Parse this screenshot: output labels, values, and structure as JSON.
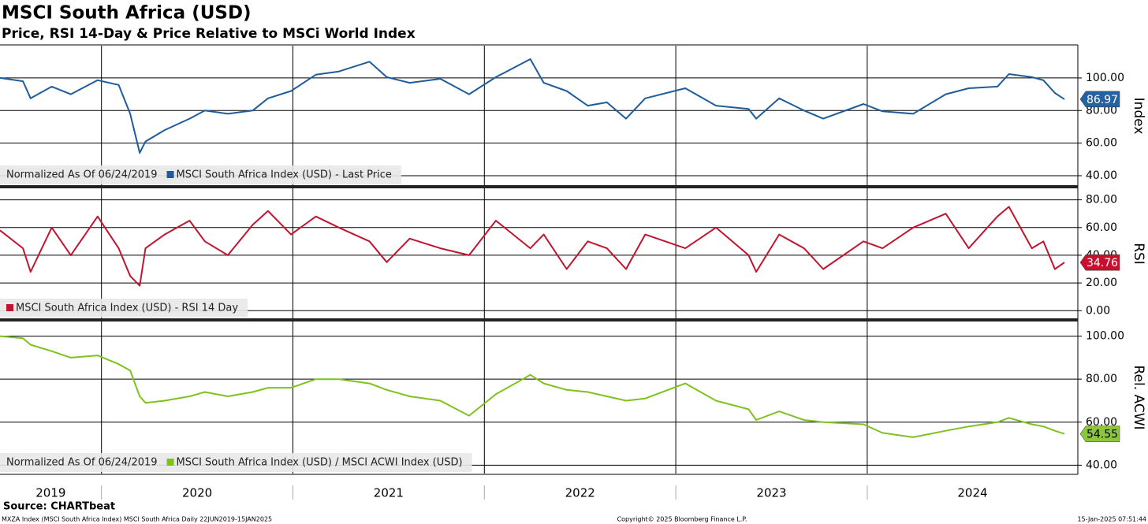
{
  "title": "MSCI South Africa (USD)",
  "subtitle": "Price, RSI 14-Day & Price Relative to MSCi World Index",
  "source": "Source: CHARTbeat",
  "footer_left": "MXZA Index (MSCI South Africa Index) MSCI South Africa  Daily 22JUN2019-15JAN2025",
  "footer_center": "Copyright© 2025 Bloomberg Finance L.P.",
  "footer_right": "15-Jan-2025 07:51:44",
  "chart_data": [
    {
      "type": "line",
      "axis_label": "Index",
      "legend_note": "Normalized As Of 06/24/2019",
      "last_value_label": true,
      "grid": true,
      "x": [
        2019.47,
        2019.59,
        2019.63,
        2019.74,
        2019.84,
        2019.98,
        2020.09,
        2020.15,
        2020.2,
        2020.23,
        2020.33,
        2020.46,
        2020.54,
        2020.66,
        2020.79,
        2020.87,
        2020.99,
        2021.12,
        2021.24,
        2021.4,
        2021.49,
        2021.61,
        2021.77,
        2021.92,
        2022.06,
        2022.24,
        2022.31,
        2022.43,
        2022.54,
        2022.64,
        2022.74,
        2022.84,
        2023.05,
        2023.21,
        2023.38,
        2023.42,
        2023.54,
        2023.67,
        2023.77,
        2023.98,
        2024.08,
        2024.24,
        2024.41,
        2024.53,
        2024.68,
        2024.74,
        2024.86,
        2024.92,
        2024.98,
        2025.03
      ],
      "xlim": [
        2019.47,
        2025.1
      ],
      "ylim": [
        33.7,
        119.8
      ],
      "yticks": [
        {
          "value": 40,
          "label": "40.00"
        },
        {
          "value": 60,
          "label": "60.00"
        },
        {
          "value": 80,
          "label": "80.00"
        },
        {
          "value": 100,
          "label": "100.00"
        }
      ],
      "series": [
        {
          "name": "MSCI South Africa Index (USD) - Last Price",
          "color": "#1f5c99",
          "badge_color": "#2462a3",
          "values": [
            100,
            98,
            87.5,
            94.7,
            90,
            98.6,
            95.7,
            78,
            54,
            61,
            68,
            75,
            80,
            78,
            80,
            87.5,
            92,
            102,
            104,
            110,
            100.5,
            97,
            99.5,
            90,
            100.5,
            111.6,
            97,
            92,
            83,
            85,
            75,
            87.5,
            93.7,
            83,
            81,
            75,
            87.5,
            80,
            75,
            84,
            79.5,
            78,
            90,
            93.7,
            94.7,
            102.4,
            100.5,
            98.6,
            90.8,
            86.97
          ]
        }
      ]
    },
    {
      "type": "line",
      "axis_label": "RSI",
      "last_value_label": true,
      "grid": true,
      "x": [
        2019.47,
        2019.59,
        2019.63,
        2019.74,
        2019.84,
        2019.98,
        2020.09,
        2020.15,
        2020.2,
        2020.23,
        2020.33,
        2020.46,
        2020.54,
        2020.66,
        2020.79,
        2020.87,
        2020.99,
        2021.12,
        2021.24,
        2021.4,
        2021.49,
        2021.61,
        2021.77,
        2021.92,
        2022.06,
        2022.24,
        2022.31,
        2022.43,
        2022.54,
        2022.64,
        2022.74,
        2022.84,
        2023.05,
        2023.21,
        2023.38,
        2023.42,
        2023.54,
        2023.67,
        2023.77,
        2023.98,
        2024.08,
        2024.24,
        2024.41,
        2024.53,
        2024.68,
        2024.74,
        2024.86,
        2024.92,
        2024.98,
        2025.03
      ],
      "xlim": [
        2019.47,
        2025.1
      ],
      "ylim": [
        -6.1,
        88.3
      ],
      "yticks": [
        {
          "value": 0,
          "label": "0.00"
        },
        {
          "value": 20,
          "label": "20.00"
        },
        {
          "value": 40,
          "label": "40.00"
        },
        {
          "value": 60,
          "label": "60.00"
        },
        {
          "value": 80,
          "label": "80.00"
        }
      ],
      "series": [
        {
          "name": "MSCI South Africa Index (USD) - RSI 14 Day",
          "color": "#c0142f",
          "badge_color": "#c8102e",
          "values": [
            58,
            45,
            28,
            60,
            40,
            68,
            45,
            25,
            18,
            45,
            55,
            65,
            50,
            40,
            62,
            72,
            55,
            68,
            60,
            50,
            35,
            52,
            45,
            40,
            65,
            45,
            55,
            30,
            50,
            45,
            30,
            55,
            45,
            60,
            40,
            28,
            55,
            45,
            30,
            50,
            45,
            60,
            70,
            45,
            68,
            75,
            45,
            50,
            30,
            34.76
          ]
        }
      ]
    },
    {
      "type": "line",
      "axis_label": "Rel. ACWI",
      "legend_note": "Normalized As Of 06/24/2019",
      "last_value_label": true,
      "grid": true,
      "x": [
        2019.47,
        2019.59,
        2019.63,
        2019.74,
        2019.84,
        2019.98,
        2020.09,
        2020.15,
        2020.2,
        2020.23,
        2020.33,
        2020.46,
        2020.54,
        2020.66,
        2020.79,
        2020.87,
        2020.99,
        2021.12,
        2021.24,
        2021.4,
        2021.49,
        2021.61,
        2021.77,
        2021.92,
        2022.06,
        2022.24,
        2022.31,
        2022.43,
        2022.54,
        2022.64,
        2022.74,
        2022.84,
        2023.05,
        2023.21,
        2023.38,
        2023.42,
        2023.54,
        2023.67,
        2023.77,
        2023.98,
        2024.08,
        2024.24,
        2024.41,
        2024.53,
        2024.68,
        2024.74,
        2024.86,
        2024.92,
        2024.98,
        2025.03
      ],
      "xlim": [
        2019.47,
        2025.1
      ],
      "ylim": [
        36.1,
        106.8
      ],
      "xticks": [
        2019,
        2020,
        2021,
        2022,
        2023,
        2024
      ],
      "yticks": [
        {
          "value": 40,
          "label": "40.00"
        },
        {
          "value": 60,
          "label": "60.00"
        },
        {
          "value": 80,
          "label": "80.00"
        },
        {
          "value": 100,
          "label": "100.00"
        }
      ],
      "series": [
        {
          "name": "MSCI South Africa Index (USD) / MSCI ACWI Index (USD)",
          "color": "#7dc21e",
          "badge_color": "#8cc63f",
          "values": [
            100,
            99,
            96,
            93,
            90,
            91,
            87,
            84,
            72,
            69,
            70,
            72,
            74,
            72,
            74,
            76,
            76,
            80,
            80,
            78,
            75,
            72,
            70,
            63,
            73,
            82,
            78,
            75,
            74,
            72,
            70,
            71,
            78,
            70,
            66,
            61,
            65,
            61,
            60,
            59,
            55,
            53,
            56,
            58,
            60,
            62,
            59,
            58,
            56,
            54.55
          ]
        }
      ]
    }
  ]
}
